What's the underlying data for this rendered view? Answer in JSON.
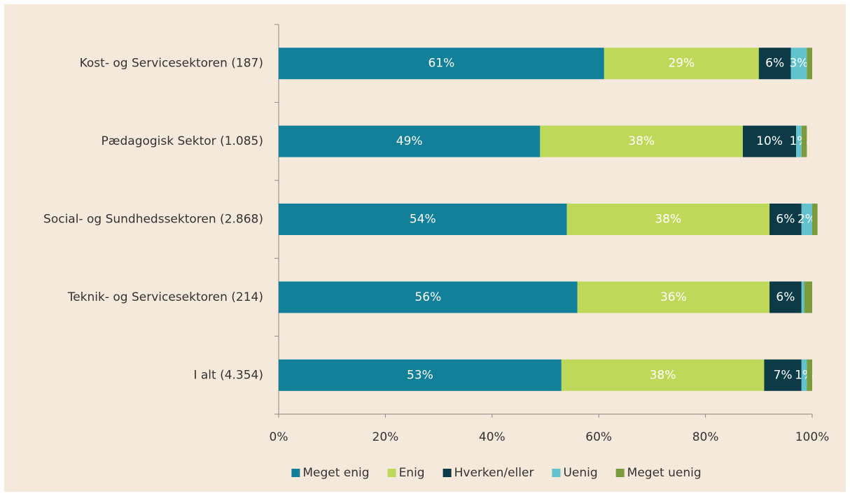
{
  "chart_data": {
    "type": "stacked-barh",
    "categories": [
      "Kost- og Servicesektoren (187)",
      "Pædagogisk Sektor (1.085)",
      "Social- og Sundhedssektoren (2.868)",
      "Teknik- og Servicesektoren (214)",
      "I alt (4.354)"
    ],
    "series": [
      {
        "name": "Meget enig",
        "color": "#13809a",
        "values": [
          61,
          49,
          54,
          56,
          53
        ],
        "value_labels": [
          "61%",
          "49%",
          "54%",
          "56%",
          "53%"
        ]
      },
      {
        "name": "Enig",
        "color": "#bed85a",
        "values": [
          29,
          38,
          38,
          36,
          38
        ],
        "value_labels": [
          "29%",
          "38%",
          "38%",
          "36%",
          "38%"
        ]
      },
      {
        "name": "Hverken/eller",
        "color": "#0c3a46",
        "values": [
          6,
          10,
          6,
          6,
          7
        ],
        "value_labels": [
          "6%",
          "10%",
          "6%",
          "6%",
          "7%"
        ]
      },
      {
        "name": "Uenig",
        "color": "#63c3cd",
        "values": [
          3,
          1,
          2,
          0.5,
          1
        ],
        "value_labels": [
          "3%",
          "1%",
          "2%",
          null,
          "1%"
        ]
      },
      {
        "name": "Meget uenig",
        "color": "#7b9b3c",
        "values": [
          1,
          1,
          1,
          1.5,
          1
        ],
        "value_labels": [
          null,
          null,
          null,
          null,
          null
        ]
      }
    ],
    "xlim": [
      0,
      100
    ],
    "xticks": [
      {
        "value": 0,
        "label": "0%"
      },
      {
        "value": 20,
        "label": "20%"
      },
      {
        "value": 40,
        "label": "40%"
      },
      {
        "value": 60,
        "label": "60%"
      },
      {
        "value": 80,
        "label": "80%"
      },
      {
        "value": 100,
        "label": "100%"
      }
    ],
    "legend": "bottom"
  }
}
